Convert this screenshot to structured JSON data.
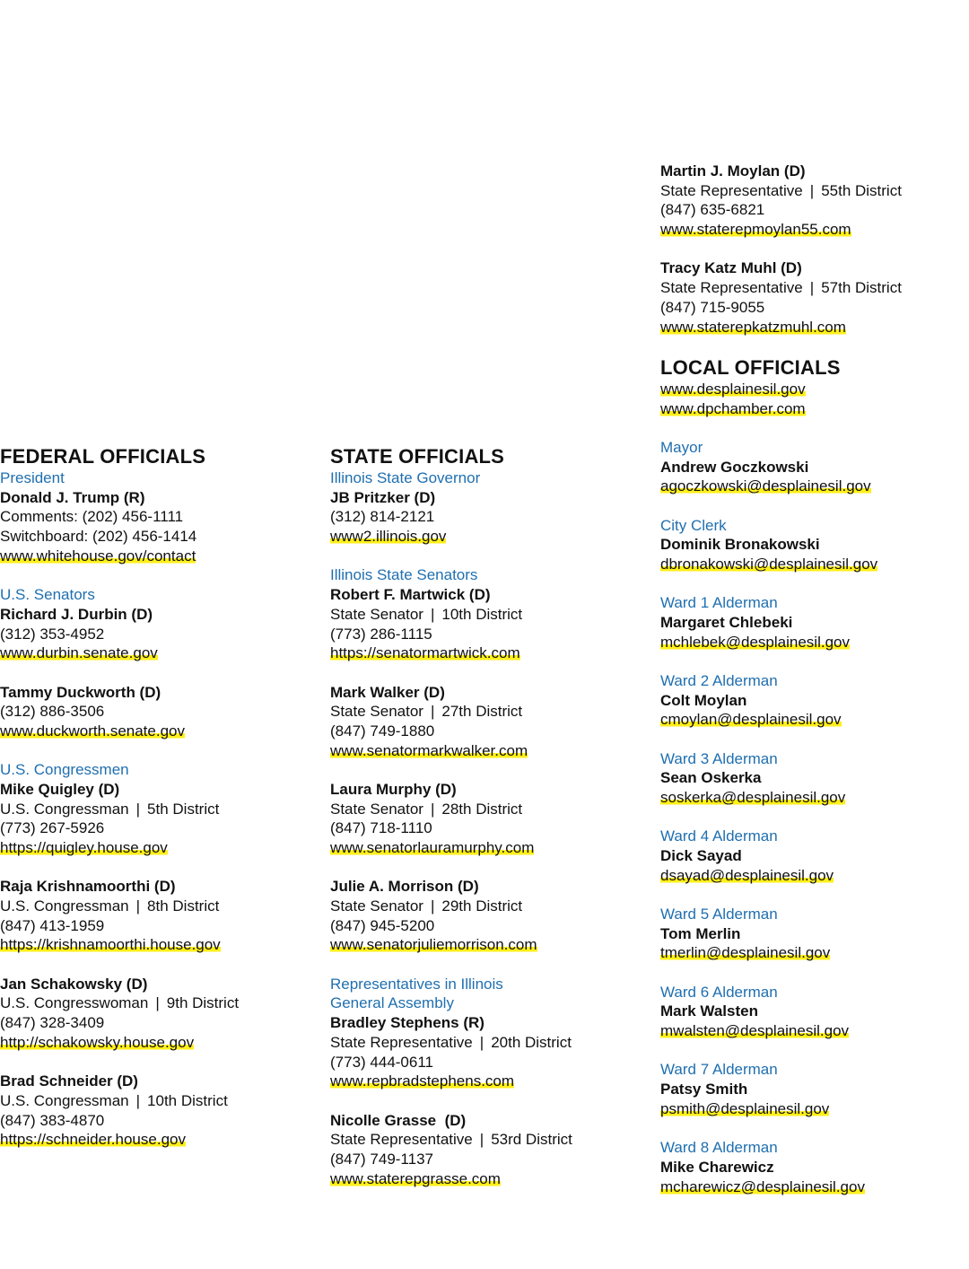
{
  "federal": {
    "heading": "FEDERAL OFFICIALS",
    "groups": [
      {
        "label": "President",
        "entries": [
          {
            "name": "Donald J. Trump (R)",
            "lines": [
              "Comments: (202) 456-1111",
              "Switchboard: (202) 456-1414"
            ],
            "link": "www.whitehouse.gov/contact"
          }
        ]
      },
      {
        "label": "U.S. Senators",
        "entries": [
          {
            "name": "Richard J. Durbin (D)",
            "lines": [
              "(312) 353-4952"
            ],
            "link": "www.durbin.senate.gov"
          },
          {
            "name": "Tammy Duckworth (D)",
            "lines": [
              "(312) 886-3506"
            ],
            "link": "www.duckworth.senate.gov"
          }
        ]
      },
      {
        "label": "U.S. Congressmen",
        "entries": [
          {
            "name": "Mike Quigley (D)",
            "title": "U.S. Congressman",
            "district": "5th District",
            "phone": "(773) 267-5926",
            "link": "https://quigley.house.gov"
          },
          {
            "name": "Raja Krishnamoorthi (D)",
            "title": "U.S. Congressman",
            "district": "8th District",
            "phone": "(847) 413-1959",
            "link": "https://krishnamoorthi.house.gov"
          },
          {
            "name": "Jan Schakowsky (D)",
            "title": "U.S. Congresswoman",
            "district": "9th District",
            "phone": "(847) 328-3409",
            "link": "http://schakowsky.house.gov"
          },
          {
            "name": "Brad Schneider (D)",
            "title": "U.S. Congressman",
            "district": "10th District",
            "phone": "(847) 383-4870",
            "link": "https://schneider.house.gov"
          }
        ]
      }
    ]
  },
  "state": {
    "heading": "STATE OFFICIALS",
    "groups": [
      {
        "label": "Illinois State Governor",
        "entries": [
          {
            "name": "JB Pritzker (D)",
            "phone": "(312) 814-2121",
            "link": "www2.illinois.gov"
          }
        ]
      },
      {
        "label": "Illinois State Senators",
        "entries": [
          {
            "name": "Robert F. Martwick (D)",
            "title": "State Senator",
            "district": "10th District",
            "phone": "(773) 286-1115",
            "link": "https://senatormartwick.com"
          },
          {
            "name": "Mark Walker (D)",
            "title": "State Senator",
            "district": "27th District",
            "phone": "(847) 749-1880",
            "link": "www.senatormarkwalker.com"
          },
          {
            "name": "Laura Murphy (D)",
            "title": "State Senator",
            "district": "28th District",
            "phone": "(847) 718-1110",
            "link": "www.senatorlauramurphy.com"
          },
          {
            "name": "Julie A. Morrison (D)",
            "title": "State Senator",
            "district": "29th District",
            "phone": "(847) 945-5200",
            "link": "www.senatorjuliemorrison.com"
          }
        ]
      },
      {
        "label_lines": [
          "Representatives in Illinois",
          "General Assembly"
        ],
        "entries": [
          {
            "name": "Bradley Stephens (R)",
            "title": "State Representative",
            "district": "20th District",
            "phone": "(773) 444-0611",
            "link": "www.repbradstephens.com"
          },
          {
            "name": "Nicolle Grasse  (D)",
            "title": "State Representative",
            "district": "53rd District",
            "phone": "(847) 749-1137",
            "link": "www.staterepgrasse.com"
          }
        ]
      }
    ]
  },
  "state_continued": [
    {
      "name": "Martin J. Moylan (D)",
      "title": "State Representative",
      "district": "55th District",
      "phone": "(847) 635-6821",
      "link": "www.staterepmoylan55.com"
    },
    {
      "name": "Tracy Katz Muhl (D)",
      "title": "State Representative",
      "district": "57th District",
      "phone": "(847) 715-9055",
      "link": "www.staterepkatzmuhl.com"
    }
  ],
  "local": {
    "heading": "LOCAL OFFICIALS",
    "links": [
      "www.desplainesil.gov",
      "www.dpchamber.com"
    ],
    "entries": [
      {
        "label": "Mayor",
        "name": "Andrew Goczkowski",
        "email": "agoczkowski@desplainesil.gov"
      },
      {
        "label": "City Clerk",
        "name": "Dominik Bronakowski",
        "email": "dbronakowski@desplainesil.gov"
      },
      {
        "label": "Ward 1 Alderman",
        "name": "Margaret Chlebeki",
        "email": "mchlebek@desplainesil.gov"
      },
      {
        "label": "Ward 2 Alderman",
        "name": "Colt Moylan",
        "email": "cmoylan@desplainesil.gov"
      },
      {
        "label": "Ward 3 Alderman",
        "name": "Sean Oskerka",
        "email": "soskerka@desplainesil.gov"
      },
      {
        "label": "Ward 4 Alderman",
        "name": "Dick Sayad",
        "email": "dsayad@desplainesil.gov"
      },
      {
        "label": "Ward 5 Alderman",
        "name": "Tom Merlin",
        "email": "tmerlin@desplainesil.gov"
      },
      {
        "label": "Ward 6 Alderman",
        "name": "Mark Walsten",
        "email": "mwalsten@desplainesil.gov"
      },
      {
        "label": "Ward 7 Alderman",
        "name": "Patsy Smith",
        "email": "psmith@desplainesil.gov"
      },
      {
        "label": "Ward 8 Alderman",
        "name": "Mike Charewicz",
        "email": "mcharewicz@desplainesil.gov"
      }
    ]
  },
  "colors": {
    "label": "#1f6fb0",
    "highlight": "#ffef1a",
    "text": "#111111"
  }
}
